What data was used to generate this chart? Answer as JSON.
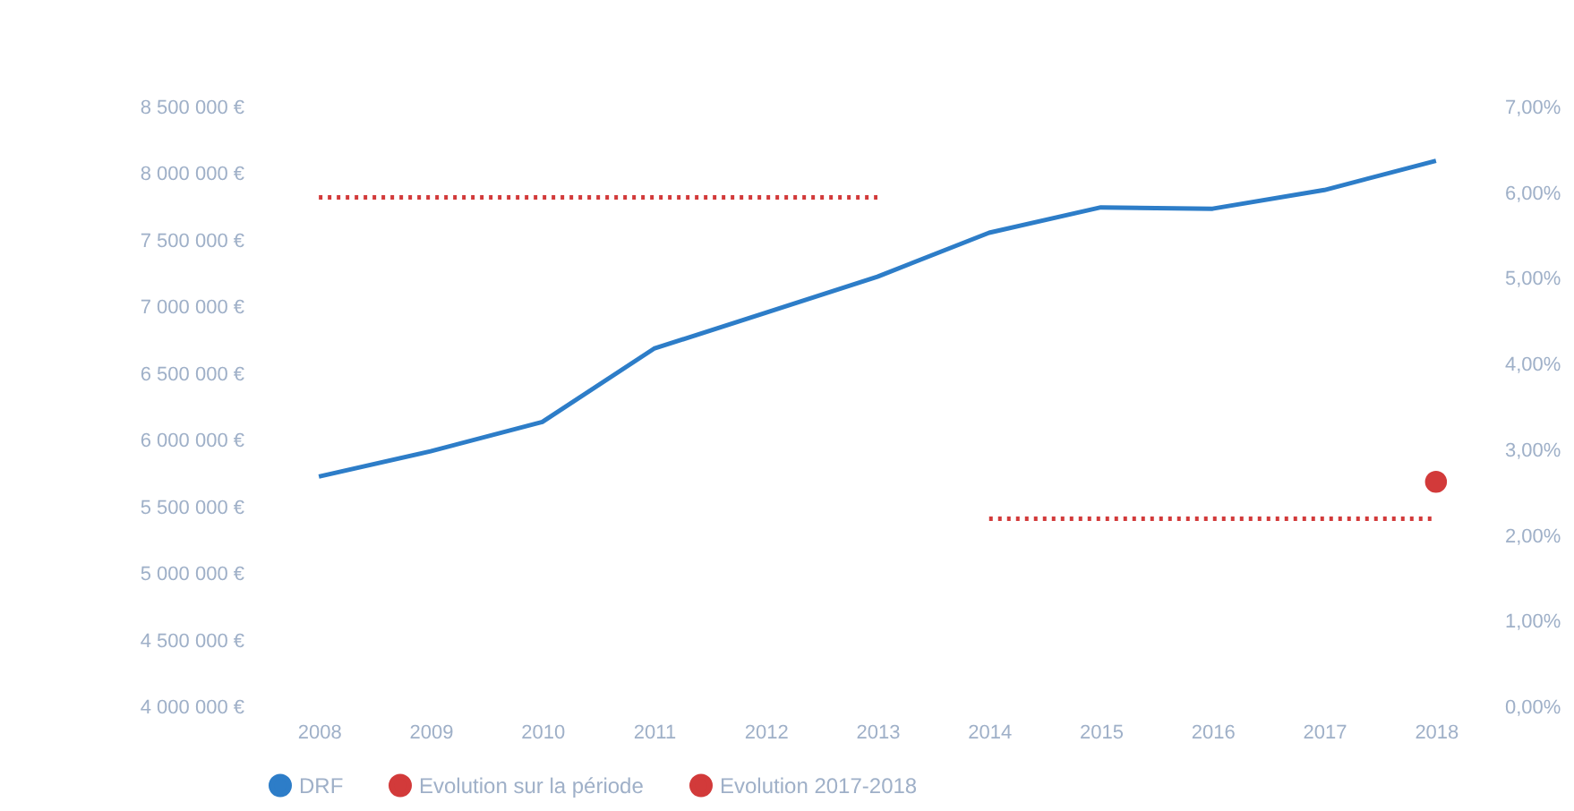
{
  "chart_data": {
    "type": "line",
    "categories": [
      "2008",
      "2009",
      "2010",
      "2011",
      "2012",
      "2013",
      "2014",
      "2015",
      "2016",
      "2017",
      "2018"
    ],
    "series": [
      {
        "name": "DRF",
        "color": "#2d7dc8",
        "line_style": "solid",
        "marker": "none",
        "values": [
          5730000,
          5920000,
          6140000,
          6690000,
          6960000,
          7230000,
          7560000,
          7750000,
          7740000,
          7880000,
          8100000
        ]
      },
      {
        "name": "Evolution sur la période",
        "type": "line",
        "axis": "y2",
        "color": "#d23a3a",
        "line_style": "dotted",
        "marker": "none",
        "values": [
          5.95,
          5.95,
          5.95,
          5.95,
          5.95,
          5.95,
          null,
          null,
          null,
          null,
          null
        ]
      },
      {
        "type": "line",
        "axis": "y2",
        "color": "#d23a3a",
        "line_style": "dotted",
        "marker": "none",
        "values": [
          null,
          null,
          null,
          null,
          null,
          null,
          2.2,
          2.2,
          2.2,
          2.2,
          2.2
        ]
      },
      {
        "name": "Evolution 2017-2018",
        "type": "scatter",
        "axis": "y2",
        "color": "#d23a3a",
        "marker": "circle",
        "values": [
          null,
          null,
          null,
          null,
          null,
          null,
          null,
          null,
          null,
          null,
          2.63
        ]
      }
    ],
    "ylim": [
      4000000,
      8500000
    ],
    "yticks": [
      {
        "value": 4000000,
        "label": "4 000 000 €"
      },
      {
        "value": 4500000,
        "label": "4 500 000 €"
      },
      {
        "value": 5000000,
        "label": "5 000 000 €"
      },
      {
        "value": 5500000,
        "label": "5 500 000 €"
      },
      {
        "value": 6000000,
        "label": "6 000 000 €"
      },
      {
        "value": 6500000,
        "label": "6 500 000 €"
      },
      {
        "value": 7000000,
        "label": "7 000 000 €"
      },
      {
        "value": 7500000,
        "label": "7 500 000 €"
      },
      {
        "value": 8000000,
        "label": "8 000 000 €"
      },
      {
        "value": 8500000,
        "label": "8 500 000 €"
      }
    ],
    "y2lim": [
      0,
      7
    ],
    "y2ticks": [
      {
        "value": 0,
        "label": "0,00%"
      },
      {
        "value": 1,
        "label": "1,00%"
      },
      {
        "value": 2,
        "label": "2,00%"
      },
      {
        "value": 3,
        "label": "3,00%"
      },
      {
        "value": 4,
        "label": "4,00%"
      },
      {
        "value": 5,
        "label": "5,00%"
      },
      {
        "value": 6,
        "label": "6,00%"
      },
      {
        "value": 7,
        "label": "7,00%"
      }
    ],
    "grid": false,
    "legend": "bottom"
  }
}
